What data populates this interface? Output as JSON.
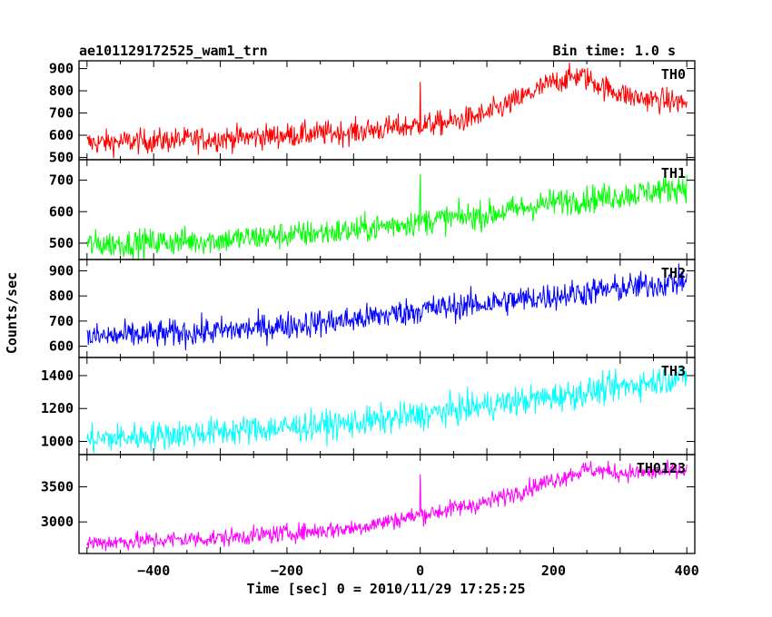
{
  "chart_data": {
    "type": "line",
    "title": "ae101129172525_wam1_trn",
    "subtitle": "Bin time: 1.0 s",
    "xlabel": "Time [sec] 0 = 2010/11/29 17:25:25",
    "ylabel": "Counts/sec",
    "xlim": [
      -512,
      412
    ],
    "xticks": [
      -400,
      -200,
      0,
      200,
      400
    ],
    "xtick_labels": [
      "−400",
      "−200",
      "0",
      "200",
      "400"
    ],
    "panels": [
      {
        "name": "TH0",
        "color": "#ff0000",
        "ylim": [
          490,
          935
        ],
        "yticks": [
          500,
          600,
          700,
          800,
          900
        ],
        "noise": 28,
        "trend": [
          [
            -500,
            565
          ],
          [
            -300,
            585
          ],
          [
            -100,
            615
          ],
          [
            50,
            660
          ],
          [
            100,
            695
          ],
          [
            150,
            765
          ],
          [
            200,
            840
          ],
          [
            240,
            870
          ],
          [
            280,
            810
          ],
          [
            320,
            770
          ],
          [
            400,
            745
          ]
        ],
        "spikes": [
          [
            0,
            840
          ]
        ]
      },
      {
        "name": "TH1",
        "color": "#00ff00",
        "ylim": [
          448,
          765
        ],
        "yticks": [
          500,
          600,
          700
        ],
        "noise": 22,
        "trend": [
          [
            -500,
            495
          ],
          [
            -300,
            510
          ],
          [
            -100,
            540
          ],
          [
            0,
            570
          ],
          [
            100,
            590
          ],
          [
            200,
            630
          ],
          [
            300,
            650
          ],
          [
            400,
            680
          ]
        ],
        "spikes": [
          [
            0,
            720
          ]
        ]
      },
      {
        "name": "TH2",
        "color": "#0000ff",
        "ylim": [
          555,
          945
        ],
        "yticks": [
          600,
          700,
          800,
          900
        ],
        "noise": 28,
        "trend": [
          [
            -500,
            635
          ],
          [
            -300,
            660
          ],
          [
            -100,
            705
          ],
          [
            0,
            745
          ],
          [
            100,
            770
          ],
          [
            200,
            800
          ],
          [
            300,
            830
          ],
          [
            400,
            860
          ]
        ],
        "spikes": []
      },
      {
        "name": "TH3",
        "color": "#00ffff",
        "ylim": [
          920,
          1510
        ],
        "yticks": [
          1000,
          1200,
          1400
        ],
        "noise": 45,
        "trend": [
          [
            -500,
            1010
          ],
          [
            -300,
            1060
          ],
          [
            -100,
            1110
          ],
          [
            0,
            1160
          ],
          [
            100,
            1220
          ],
          [
            200,
            1270
          ],
          [
            300,
            1330
          ],
          [
            400,
            1400
          ]
        ],
        "spikes": []
      },
      {
        "name": "TH0123",
        "color": "#ff00ff",
        "ylim": [
          2550,
          3960
        ],
        "yticks": [
          3000,
          3500
        ],
        "noise": 65,
        "trend": [
          [
            -500,
            2700
          ],
          [
            -300,
            2770
          ],
          [
            -100,
            2910
          ],
          [
            0,
            3100
          ],
          [
            100,
            3280
          ],
          [
            200,
            3600
          ],
          [
            250,
            3750
          ],
          [
            300,
            3700
          ],
          [
            400,
            3720
          ]
        ],
        "spikes": [
          [
            0,
            3680
          ]
        ]
      }
    ]
  }
}
